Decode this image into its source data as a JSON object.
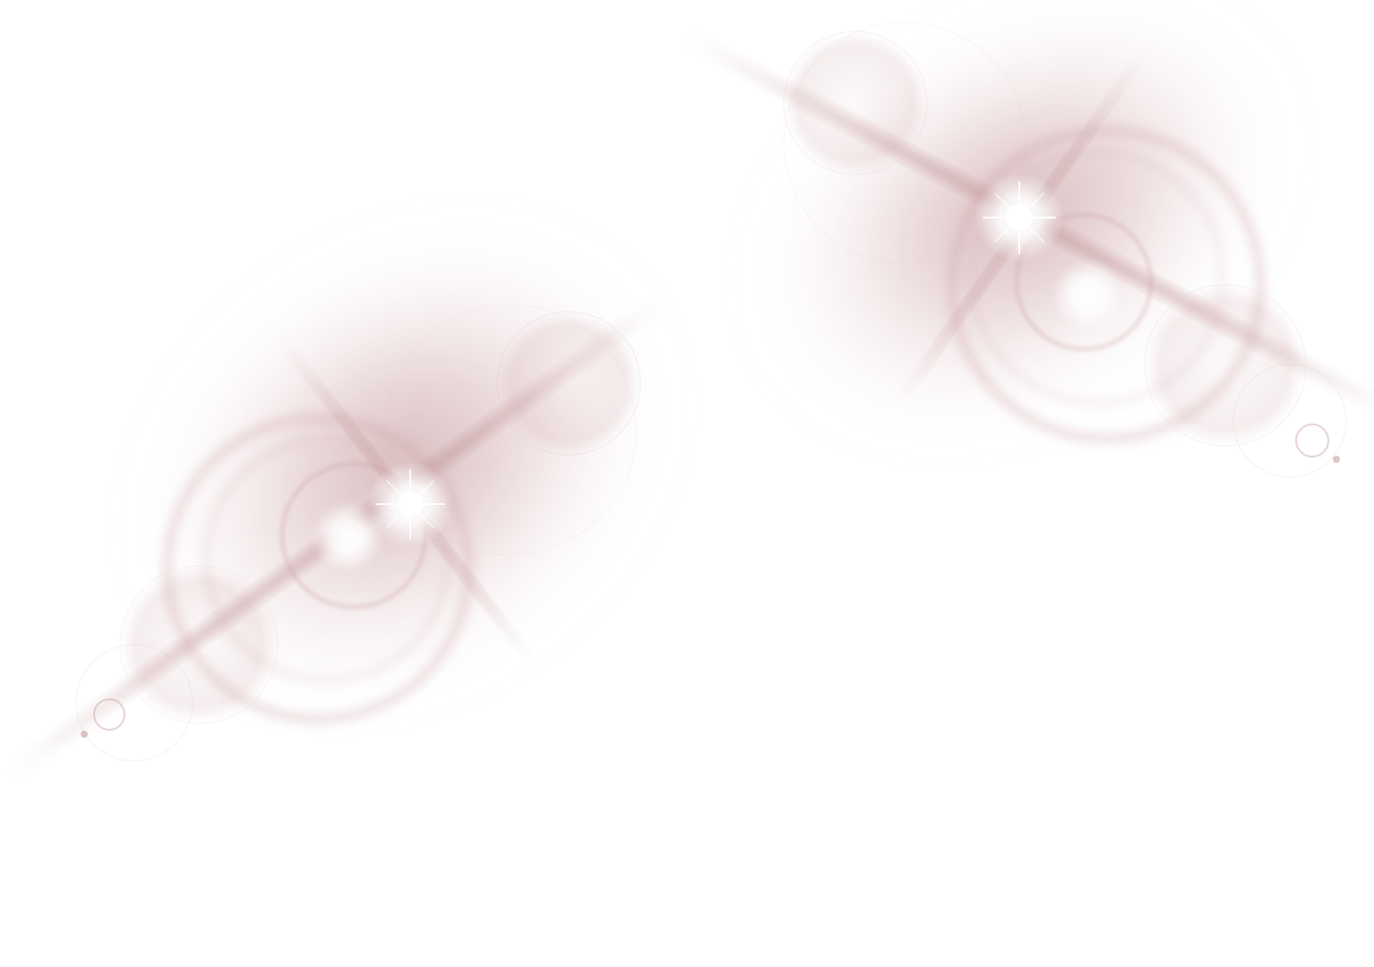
{
  "scene": {
    "background_color": "#ffffff",
    "tint_color": "#b8868a",
    "ring_color": "#c99ca0",
    "core_color": "#ffffff",
    "flare_count": 2
  },
  "flares": [
    {
      "id": "left-flare",
      "icon": "lens-flare-icon"
    },
    {
      "id": "right-flare",
      "icon": "lens-flare-icon"
    }
  ]
}
